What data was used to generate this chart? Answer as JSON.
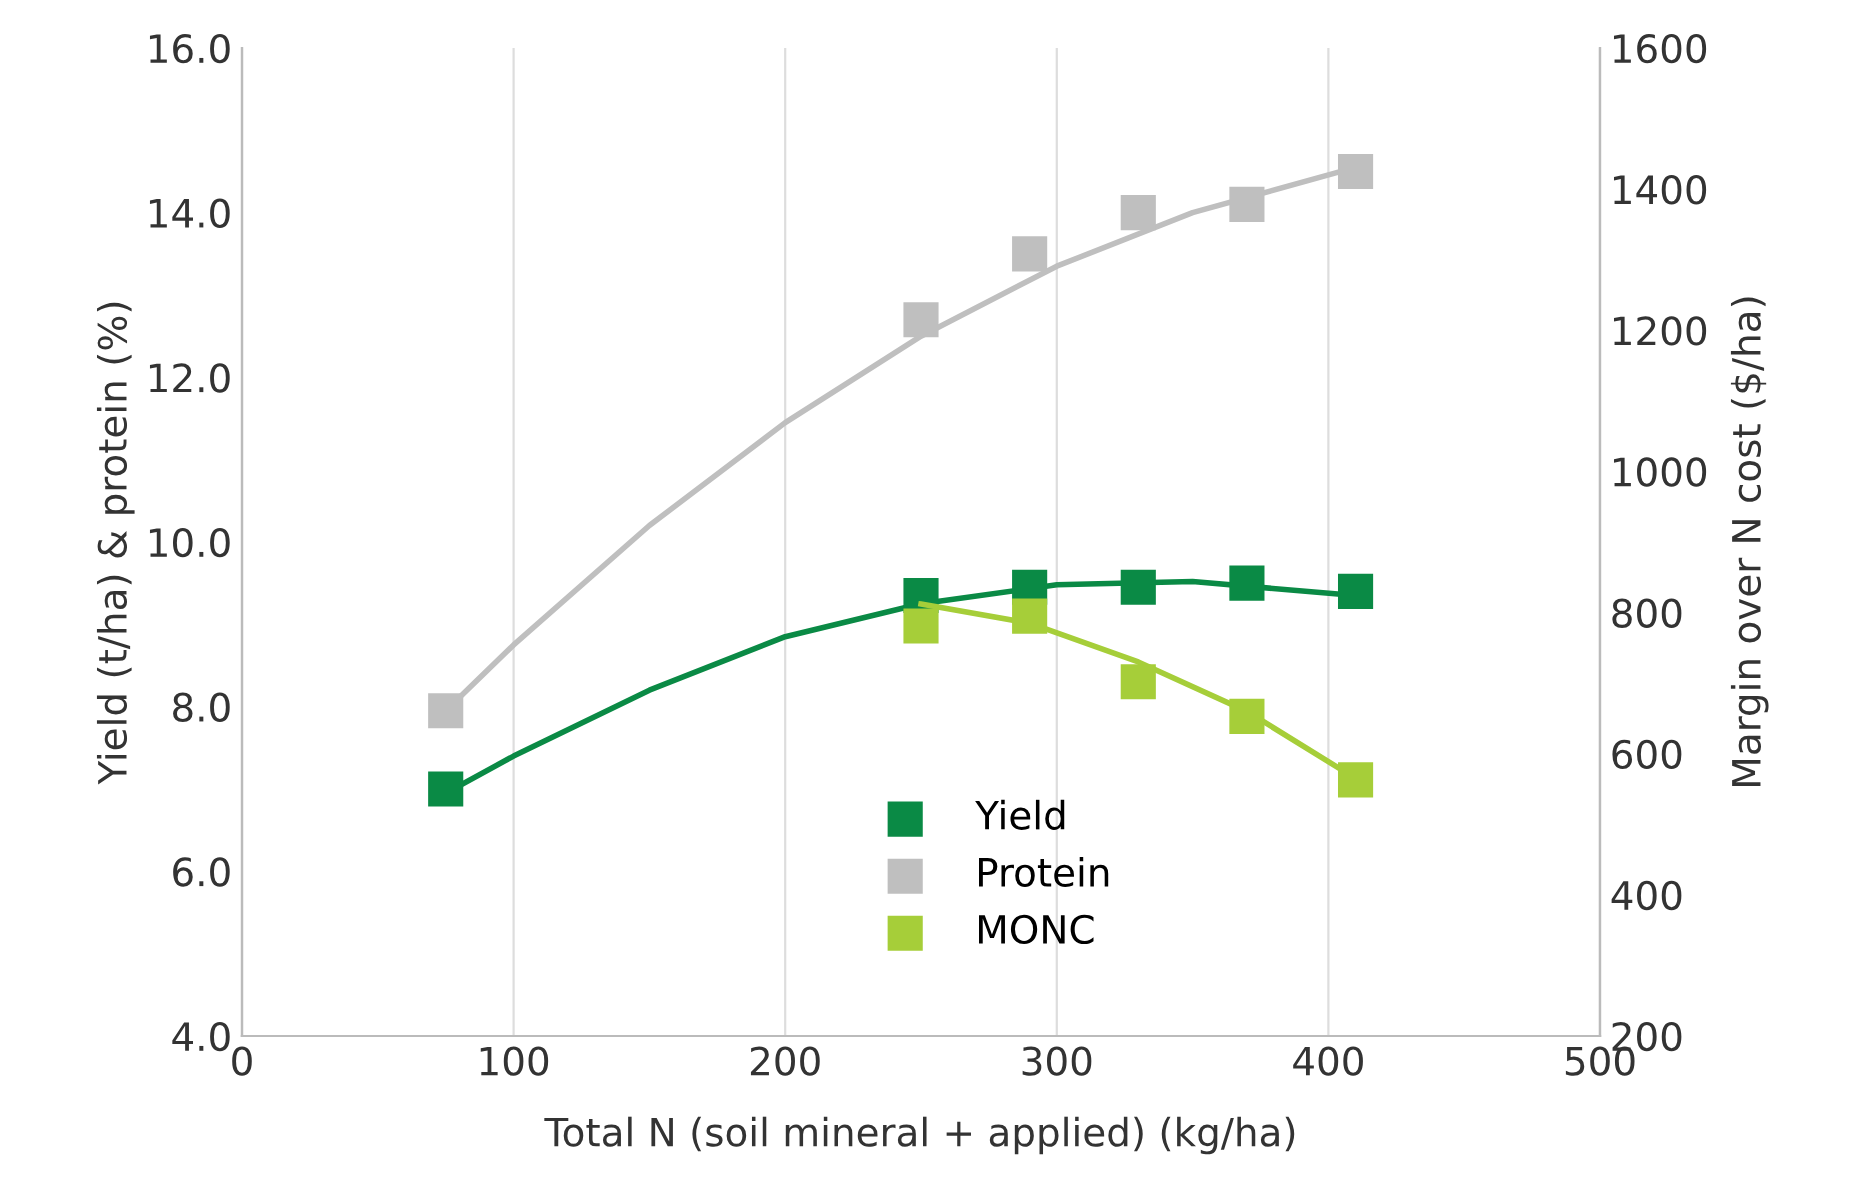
{
  "chart_data": {
    "type": "line",
    "xlabel": "Total N (soil mineral + applied) (kg/ha)",
    "ylabel": "Yield (t/ha) & protein (%)",
    "y2label": "Margin over N cost ($/ha)",
    "xlim": [
      0,
      500
    ],
    "xticks": [
      0,
      100,
      200,
      300,
      400,
      500
    ],
    "ylim": [
      4,
      16
    ],
    "yticks": [
      {
        "value": 4,
        "label": "4.0"
      },
      {
        "value": 6,
        "label": "6.0"
      },
      {
        "value": 8,
        "label": "8.0"
      },
      {
        "value": 10,
        "label": "10.0"
      },
      {
        "value": 12,
        "label": "12.0"
      },
      {
        "value": 14,
        "label": "14.0"
      },
      {
        "value": 16,
        "label": "16.0"
      }
    ],
    "y2lim": [
      200,
      1600
    ],
    "y2ticks": [
      200,
      400,
      600,
      800,
      1000,
      1200,
      1400,
      1600
    ],
    "grid": "x",
    "legend": "bottom",
    "series": [
      {
        "name": "Yield",
        "type": "scatter",
        "marker": "square",
        "color": "#0a8a45",
        "x": [
          75,
          250,
          290,
          330,
          370,
          410
        ],
        "values": [
          7.0,
          9.35,
          9.45,
          9.45,
          9.5,
          9.4
        ]
      },
      {
        "name": "Protein",
        "type": "scatter",
        "marker": "square",
        "color": "#bfbfbf",
        "x": [
          75,
          250,
          290,
          330,
          370,
          410
        ],
        "values": [
          7.95,
          12.7,
          13.5,
          14.0,
          14.1,
          14.5
        ]
      },
      {
        "name": "MONC",
        "type": "scatter",
        "marker": "square",
        "axis": "y2",
        "color": "#a6ce39",
        "x": [
          250,
          290,
          330,
          370,
          410
        ],
        "values": [
          781,
          795,
          702,
          653,
          563
        ]
      },
      {
        "color": "#0a8a45",
        "x": [
          75,
          100,
          150,
          200,
          250,
          300,
          350,
          410
        ],
        "values": [
          6.95,
          7.4,
          8.2,
          8.85,
          9.25,
          9.48,
          9.52,
          9.35
        ]
      },
      {
        "color": "#bfbfbf",
        "x": [
          75,
          100,
          150,
          200,
          250,
          300,
          350,
          410
        ],
        "values": [
          7.95,
          8.75,
          10.2,
          11.45,
          12.5,
          13.35,
          14.0,
          14.55
        ]
      },
      {
        "axis": "y2",
        "color": "#a6ce39",
        "x": [
          250,
          290,
          330,
          370,
          410
        ],
        "values": [
          812,
          785,
          730,
          660,
          565
        ]
      }
    ]
  }
}
